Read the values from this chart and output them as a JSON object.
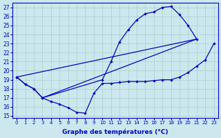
{
  "xlabel": "Graphe des températures (°C)",
  "bg_color": "#cce8ee",
  "line_color": "#0000cc",
  "grid_color": "#aacccc",
  "ylim": [
    14.8,
    27.5
  ],
  "xlim": [
    -0.5,
    23.5
  ],
  "yticks": [
    15,
    16,
    17,
    18,
    19,
    20,
    21,
    22,
    23,
    24,
    25,
    26,
    27
  ],
  "xticks": [
    0,
    1,
    2,
    3,
    4,
    5,
    6,
    7,
    8,
    9,
    10,
    11,
    12,
    13,
    14,
    15,
    16,
    17,
    18,
    19,
    20,
    21,
    22,
    23
  ],
  "curve_bottom": {
    "x": [
      0,
      1,
      2,
      3,
      4,
      5,
      6,
      7,
      8,
      9,
      10,
      11,
      12,
      13,
      14,
      15,
      16,
      17,
      18,
      19,
      20,
      21,
      22,
      23
    ],
    "y": [
      19.3,
      18.5,
      18.0,
      17.0,
      16.6,
      16.3,
      15.9,
      15.4,
      15.3,
      17.5,
      18.6,
      18.6,
      18.7,
      18.8,
      18.8,
      18.8,
      18.9,
      19.0,
      19.0,
      19.3,
      19.8,
      20.5,
      21.2,
      23.0
    ]
  },
  "curve_top": {
    "x": [
      0,
      1,
      2,
      3,
      10,
      11,
      12,
      13,
      14,
      15,
      16,
      17,
      18,
      19,
      20,
      21
    ],
    "y": [
      19.3,
      18.5,
      18.0,
      17.0,
      19.0,
      21.0,
      23.2,
      24.5,
      25.6,
      26.3,
      26.5,
      27.0,
      27.1,
      26.2,
      25.0,
      23.5
    ]
  },
  "diag1": {
    "x": [
      0,
      21
    ],
    "y": [
      19.3,
      23.5
    ]
  },
  "diag2": {
    "x": [
      3,
      21
    ],
    "y": [
      17.0,
      23.5
    ]
  }
}
